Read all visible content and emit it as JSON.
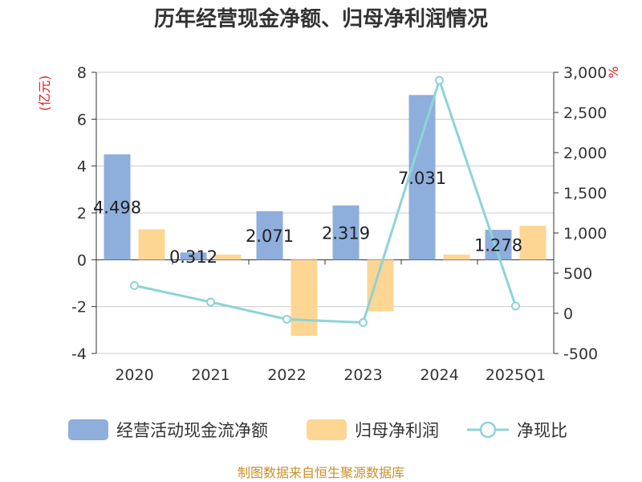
{
  "chart_data": {
    "type": "bar",
    "title": "历年经营现金净额、归母净利润情况",
    "categories": [
      "2020",
      "2021",
      "2022",
      "2023",
      "2024",
      "2025Q1"
    ],
    "series": [
      {
        "name": "经营活动现金流净额",
        "type": "bar",
        "axis": "left",
        "color": "#8eaedc",
        "values": [
          4.498,
          0.312,
          2.071,
          2.319,
          7.031,
          1.278
        ]
      },
      {
        "name": "归母净利润",
        "type": "bar",
        "axis": "left",
        "color": "#fdd693",
        "values": [
          1.3,
          0.22,
          -3.25,
          -2.2,
          0.22,
          1.45
        ]
      },
      {
        "name": "净现比",
        "type": "line",
        "axis": "right",
        "color": "#8dd3d8",
        "values": [
          345,
          140,
          -75,
          -115,
          2900,
          90
        ]
      }
    ],
    "data_labels": [
      "4.498",
      "0.312",
      "2.071",
      "2.319",
      "7.031",
      "1.278"
    ],
    "y_left": {
      "label": "(亿元)",
      "ylim": [
        -4,
        8
      ],
      "ticks": [
        "-4",
        "-2",
        "0",
        "2",
        "4",
        "6",
        "8"
      ]
    },
    "y_right": {
      "label": "%",
      "ylim": [
        -500,
        3000
      ],
      "ticks": [
        "-500",
        "0",
        "500",
        "1,000",
        "1,500",
        "2,000",
        "2,500",
        "3,000"
      ]
    },
    "grid": true,
    "legend_position": "bottom"
  },
  "source": "制图数据来自恒生聚源数据库"
}
